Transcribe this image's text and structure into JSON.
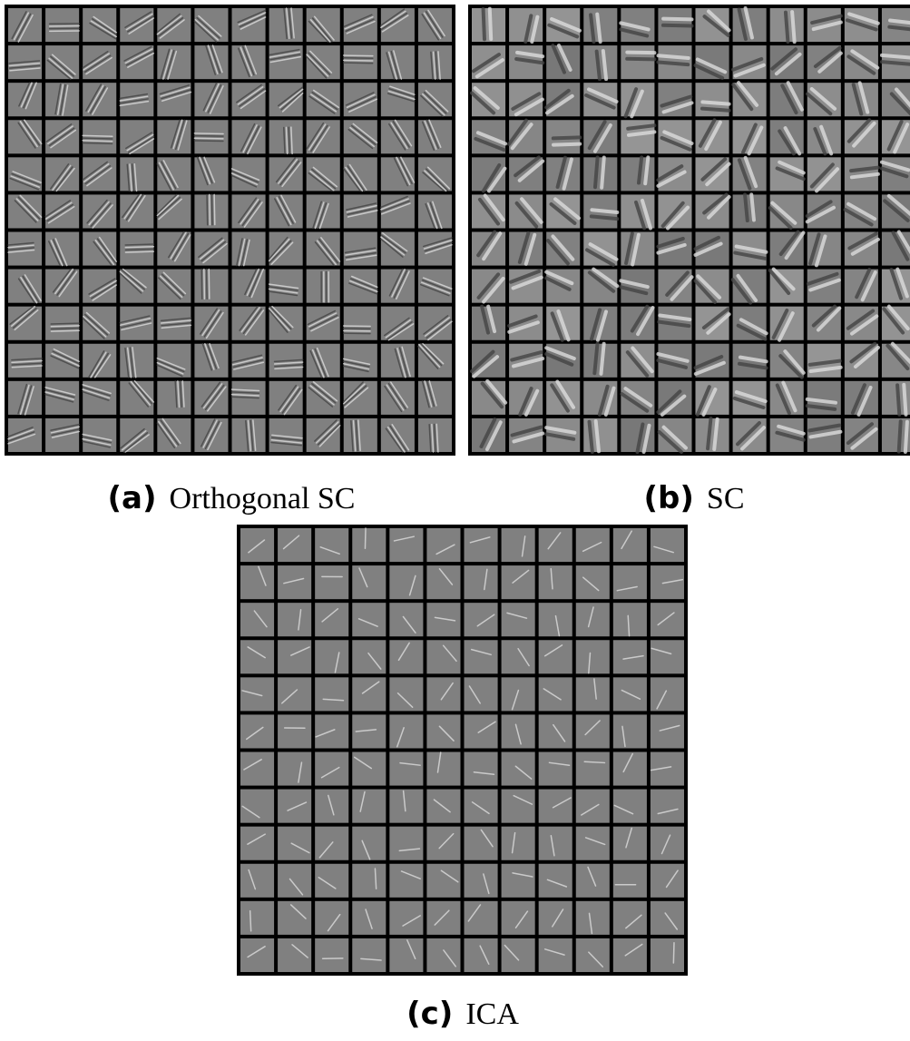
{
  "panels": [
    {
      "label": "(a)",
      "caption": "Orthogonal SC"
    },
    {
      "label": "(b)",
      "caption": "SC"
    },
    {
      "label": "(c)",
      "caption": "ICA"
    }
  ]
}
